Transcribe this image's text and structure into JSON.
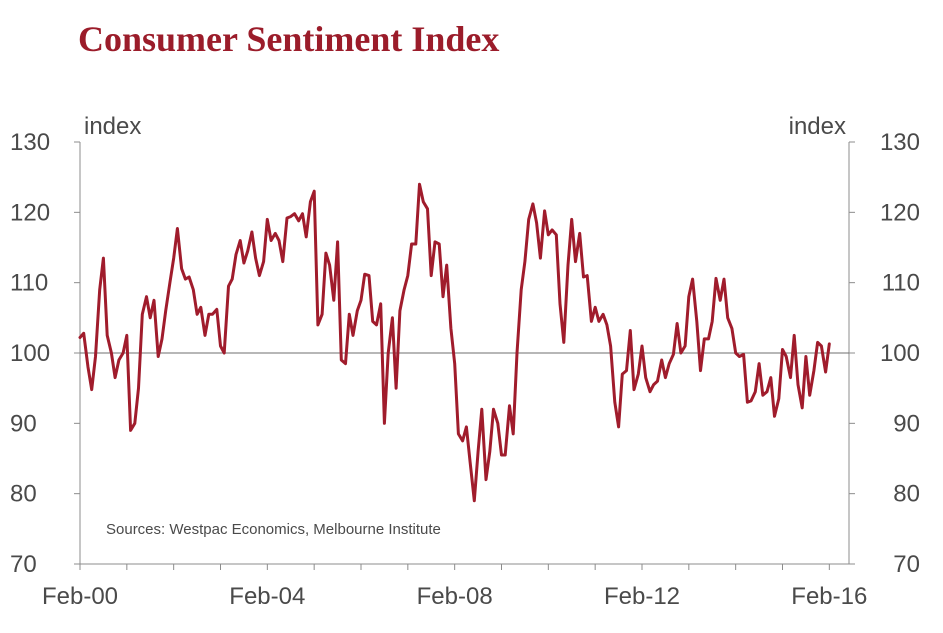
{
  "chart_data": {
    "type": "line",
    "title": "Consumer Sentiment Index",
    "ylabel_left": "index",
    "ylabel_right": "index",
    "source": "Sources: Westpac Economics, Melbourne Institute",
    "ylim": [
      70,
      130
    ],
    "yticks": [
      70,
      80,
      90,
      100,
      110,
      120,
      130
    ],
    "xticks": [
      {
        "label": "Feb-00",
        "x": 2000.08
      },
      {
        "label": "Feb-04",
        "x": 2004.08
      },
      {
        "label": "Feb-08",
        "x": 2008.08
      },
      {
        "label": "Feb-12",
        "x": 2012.08
      },
      {
        "label": "Feb-16",
        "x": 2016.08
      }
    ],
    "xlim": [
      2000.08,
      2016.5
    ],
    "reference_line": 100,
    "line_color": "#a01c2c",
    "series": [
      {
        "name": "Consumer Sentiment Index",
        "points": [
          [
            2000.08,
            102.2
          ],
          [
            2000.16,
            102.8
          ],
          [
            2000.25,
            98.0
          ],
          [
            2000.33,
            94.8
          ],
          [
            2000.41,
            99.5
          ],
          [
            2000.5,
            109.0
          ],
          [
            2000.58,
            113.5
          ],
          [
            2000.66,
            102.5
          ],
          [
            2000.75,
            100.0
          ],
          [
            2000.83,
            96.5
          ],
          [
            2000.91,
            99.0
          ],
          [
            2001.0,
            100.0
          ],
          [
            2001.08,
            102.5
          ],
          [
            2001.16,
            89.0
          ],
          [
            2001.25,
            90.0
          ],
          [
            2001.33,
            95.0
          ],
          [
            2001.41,
            105.5
          ],
          [
            2001.5,
            108.0
          ],
          [
            2001.58,
            105.0
          ],
          [
            2001.66,
            107.5
          ],
          [
            2001.75,
            99.5
          ],
          [
            2001.83,
            102.0
          ],
          [
            2001.91,
            106.0
          ],
          [
            2002.0,
            110.0
          ],
          [
            2002.08,
            113.5
          ],
          [
            2002.16,
            117.7
          ],
          [
            2002.25,
            112.0
          ],
          [
            2002.33,
            110.5
          ],
          [
            2002.41,
            110.8
          ],
          [
            2002.5,
            109.0
          ],
          [
            2002.58,
            105.5
          ],
          [
            2002.66,
            106.5
          ],
          [
            2002.75,
            102.5
          ],
          [
            2002.83,
            105.5
          ],
          [
            2002.91,
            105.5
          ],
          [
            2003.0,
            106.2
          ],
          [
            2003.08,
            101.0
          ],
          [
            2003.16,
            100.0
          ],
          [
            2003.25,
            109.5
          ],
          [
            2003.33,
            110.5
          ],
          [
            2003.41,
            114.0
          ],
          [
            2003.5,
            116.0
          ],
          [
            2003.58,
            112.8
          ],
          [
            2003.66,
            114.5
          ],
          [
            2003.75,
            117.2
          ],
          [
            2003.83,
            113.5
          ],
          [
            2003.91,
            111.0
          ],
          [
            2004.0,
            113.0
          ],
          [
            2004.08,
            119.0
          ],
          [
            2004.16,
            116.0
          ],
          [
            2004.25,
            117.0
          ],
          [
            2004.33,
            116.0
          ],
          [
            2004.41,
            113.0
          ],
          [
            2004.5,
            119.2
          ],
          [
            2004.58,
            119.4
          ],
          [
            2004.66,
            119.8
          ],
          [
            2004.75,
            118.8
          ],
          [
            2004.83,
            119.8
          ],
          [
            2004.91,
            116.5
          ],
          [
            2005.0,
            121.5
          ],
          [
            2005.08,
            123.0
          ],
          [
            2005.16,
            104.0
          ],
          [
            2005.25,
            105.5
          ],
          [
            2005.33,
            114.2
          ],
          [
            2005.41,
            112.5
          ],
          [
            2005.5,
            107.5
          ],
          [
            2005.58,
            115.8
          ],
          [
            2005.66,
            99.0
          ],
          [
            2005.75,
            98.5
          ],
          [
            2005.83,
            105.5
          ],
          [
            2005.91,
            102.5
          ],
          [
            2006.0,
            106.0
          ],
          [
            2006.08,
            107.5
          ],
          [
            2006.16,
            111.2
          ],
          [
            2006.25,
            111.0
          ],
          [
            2006.33,
            104.5
          ],
          [
            2006.41,
            104.0
          ],
          [
            2006.5,
            107.0
          ],
          [
            2006.58,
            90.0
          ],
          [
            2006.66,
            100.0
          ],
          [
            2006.75,
            105.0
          ],
          [
            2006.83,
            95.0
          ],
          [
            2006.91,
            106.0
          ],
          [
            2007.0,
            109.0
          ],
          [
            2007.08,
            111.0
          ],
          [
            2007.16,
            115.5
          ],
          [
            2007.25,
            115.5
          ],
          [
            2007.33,
            124.0
          ],
          [
            2007.41,
            121.5
          ],
          [
            2007.5,
            120.5
          ],
          [
            2007.58,
            111.0
          ],
          [
            2007.66,
            115.8
          ],
          [
            2007.75,
            115.5
          ],
          [
            2007.83,
            108.0
          ],
          [
            2007.91,
            112.5
          ],
          [
            2008.0,
            103.5
          ],
          [
            2008.08,
            98.5
          ],
          [
            2008.16,
            88.5
          ],
          [
            2008.25,
            87.5
          ],
          [
            2008.33,
            89.5
          ],
          [
            2008.41,
            84.5
          ],
          [
            2008.5,
            79.0
          ],
          [
            2008.58,
            86.0
          ],
          [
            2008.66,
            92.0
          ],
          [
            2008.75,
            82.0
          ],
          [
            2008.83,
            86.0
          ],
          [
            2008.91,
            92.0
          ],
          [
            2009.0,
            90.0
          ],
          [
            2009.08,
            85.5
          ],
          [
            2009.16,
            85.5
          ],
          [
            2009.25,
            92.5
          ],
          [
            2009.33,
            88.5
          ],
          [
            2009.41,
            100.0
          ],
          [
            2009.5,
            109.0
          ],
          [
            2009.58,
            113.0
          ],
          [
            2009.66,
            119.0
          ],
          [
            2009.75,
            121.2
          ],
          [
            2009.83,
            118.5
          ],
          [
            2009.91,
            113.5
          ],
          [
            2010.0,
            120.2
          ],
          [
            2010.08,
            116.8
          ],
          [
            2010.16,
            117.5
          ],
          [
            2010.25,
            116.8
          ],
          [
            2010.33,
            107.0
          ],
          [
            2010.41,
            101.5
          ],
          [
            2010.5,
            112.5
          ],
          [
            2010.58,
            119.0
          ],
          [
            2010.66,
            113.0
          ],
          [
            2010.75,
            117.0
          ],
          [
            2010.83,
            110.8
          ],
          [
            2010.91,
            111.0
          ],
          [
            2011.0,
            104.5
          ],
          [
            2011.08,
            106.5
          ],
          [
            2011.16,
            104.5
          ],
          [
            2011.25,
            105.5
          ],
          [
            2011.33,
            104.0
          ],
          [
            2011.41,
            101.0
          ],
          [
            2011.5,
            93.0
          ],
          [
            2011.58,
            89.5
          ],
          [
            2011.66,
            97.0
          ],
          [
            2011.75,
            97.5
          ],
          [
            2011.83,
            103.2
          ],
          [
            2011.91,
            94.8
          ],
          [
            2012.0,
            97.0
          ],
          [
            2012.08,
            101.0
          ],
          [
            2012.16,
            96.5
          ],
          [
            2012.25,
            94.5
          ],
          [
            2012.33,
            95.5
          ],
          [
            2012.41,
            96.0
          ],
          [
            2012.5,
            99.0
          ],
          [
            2012.58,
            96.5
          ],
          [
            2012.66,
            98.5
          ],
          [
            2012.75,
            99.8
          ],
          [
            2012.83,
            104.2
          ],
          [
            2012.91,
            100.0
          ],
          [
            2013.0,
            101.0
          ],
          [
            2013.08,
            108.0
          ],
          [
            2013.16,
            110.5
          ],
          [
            2013.25,
            104.5
          ],
          [
            2013.33,
            97.5
          ],
          [
            2013.41,
            102.0
          ],
          [
            2013.5,
            102.0
          ],
          [
            2013.58,
            104.5
          ],
          [
            2013.66,
            110.6
          ],
          [
            2013.75,
            107.5
          ],
          [
            2013.83,
            110.5
          ],
          [
            2013.91,
            105.0
          ],
          [
            2014.0,
            103.5
          ],
          [
            2014.08,
            100.0
          ],
          [
            2014.16,
            99.5
          ],
          [
            2014.25,
            99.8
          ],
          [
            2014.33,
            93.0
          ],
          [
            2014.41,
            93.2
          ],
          [
            2014.5,
            94.5
          ],
          [
            2014.58,
            98.5
          ],
          [
            2014.66,
            94.0
          ],
          [
            2014.75,
            94.5
          ],
          [
            2014.83,
            96.5
          ],
          [
            2014.91,
            91.0
          ],
          [
            2015.0,
            93.5
          ],
          [
            2015.08,
            100.5
          ],
          [
            2015.16,
            99.5
          ],
          [
            2015.25,
            96.5
          ],
          [
            2015.33,
            102.5
          ],
          [
            2015.41,
            95.5
          ],
          [
            2015.5,
            92.2
          ],
          [
            2015.58,
            99.5
          ],
          [
            2015.66,
            94.0
          ],
          [
            2015.75,
            97.5
          ],
          [
            2015.83,
            101.5
          ],
          [
            2015.91,
            101.0
          ],
          [
            2016.0,
            97.3
          ],
          [
            2016.08,
            101.3
          ]
        ]
      }
    ]
  }
}
